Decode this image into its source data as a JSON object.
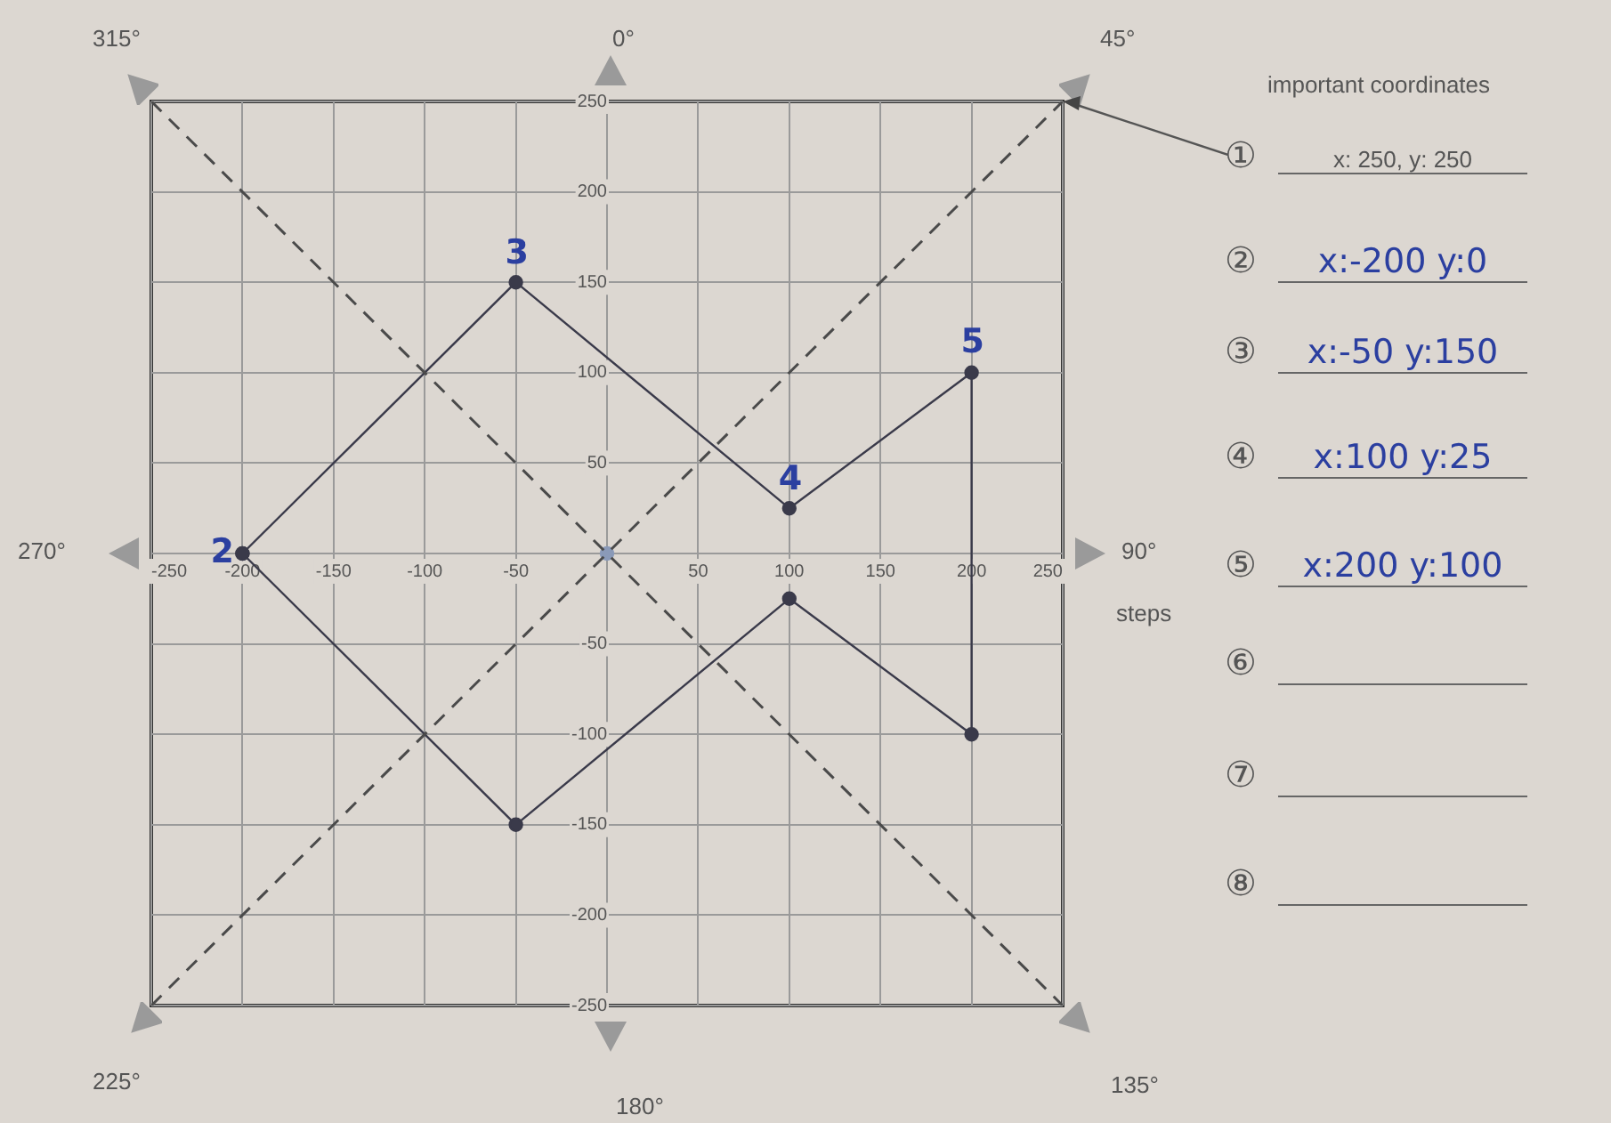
{
  "chart_data": {
    "type": "line",
    "xlim": [
      -250,
      250
    ],
    "ylim": [
      -250,
      250
    ],
    "xticks": [
      -250,
      -200,
      -150,
      -100,
      -50,
      {
        "value": 0,
        "label": null
      },
      50,
      100,
      150,
      200,
      250
    ],
    "yticks": [
      -250,
      -200,
      -150,
      -100,
      -50,
      {
        "value": 0,
        "label": null
      },
      50,
      100,
      150,
      200,
      250
    ],
    "grid": true,
    "legend": false,
    "series": [
      {
        "type": "line",
        "line_style": "dashed",
        "marker": "none",
        "color": "#4a4a4a",
        "x": [
          -250,
          250
        ],
        "values": [
          250,
          -250
        ]
      },
      {
        "type": "line",
        "line_style": "dashed",
        "marker": "none",
        "color": "#4a4a4a",
        "x": [
          -250,
          250
        ],
        "values": [
          -250,
          250
        ]
      },
      {
        "type": "scatter",
        "line_style": "solid",
        "marker": "circle",
        "color": "#3a3a4a",
        "x": [
          -200,
          -50,
          100,
          200,
          200,
          100,
          -50,
          -200
        ],
        "values": [
          0,
          150,
          25,
          100,
          -100,
          -25,
          -150,
          0
        ]
      },
      {
        "type": "scatter",
        "marker": "circle",
        "color": "#8a9ab8",
        "x": [
          0
        ],
        "values": [
          0
        ]
      }
    ],
    "annotations": [
      "315°",
      "0°",
      "45°",
      "90°",
      "135°",
      "180°",
      "225°",
      "270°",
      "steps",
      "important coordinates",
      "① x: 250, y: 250",
      "② x:-200 y:0",
      "③ x:-50 y:150",
      "④ x:100 y:25",
      "⑤ x:200 y:100",
      "⑥",
      "⑦",
      "⑧",
      {
        "text": "2",
        "x": -200,
        "y": 0
      },
      {
        "text": "3",
        "x": -50,
        "y": 150
      },
      {
        "text": "4",
        "x": 100,
        "y": 25
      },
      {
        "text": "5",
        "x": 200,
        "y": 100
      }
    ]
  }
}
